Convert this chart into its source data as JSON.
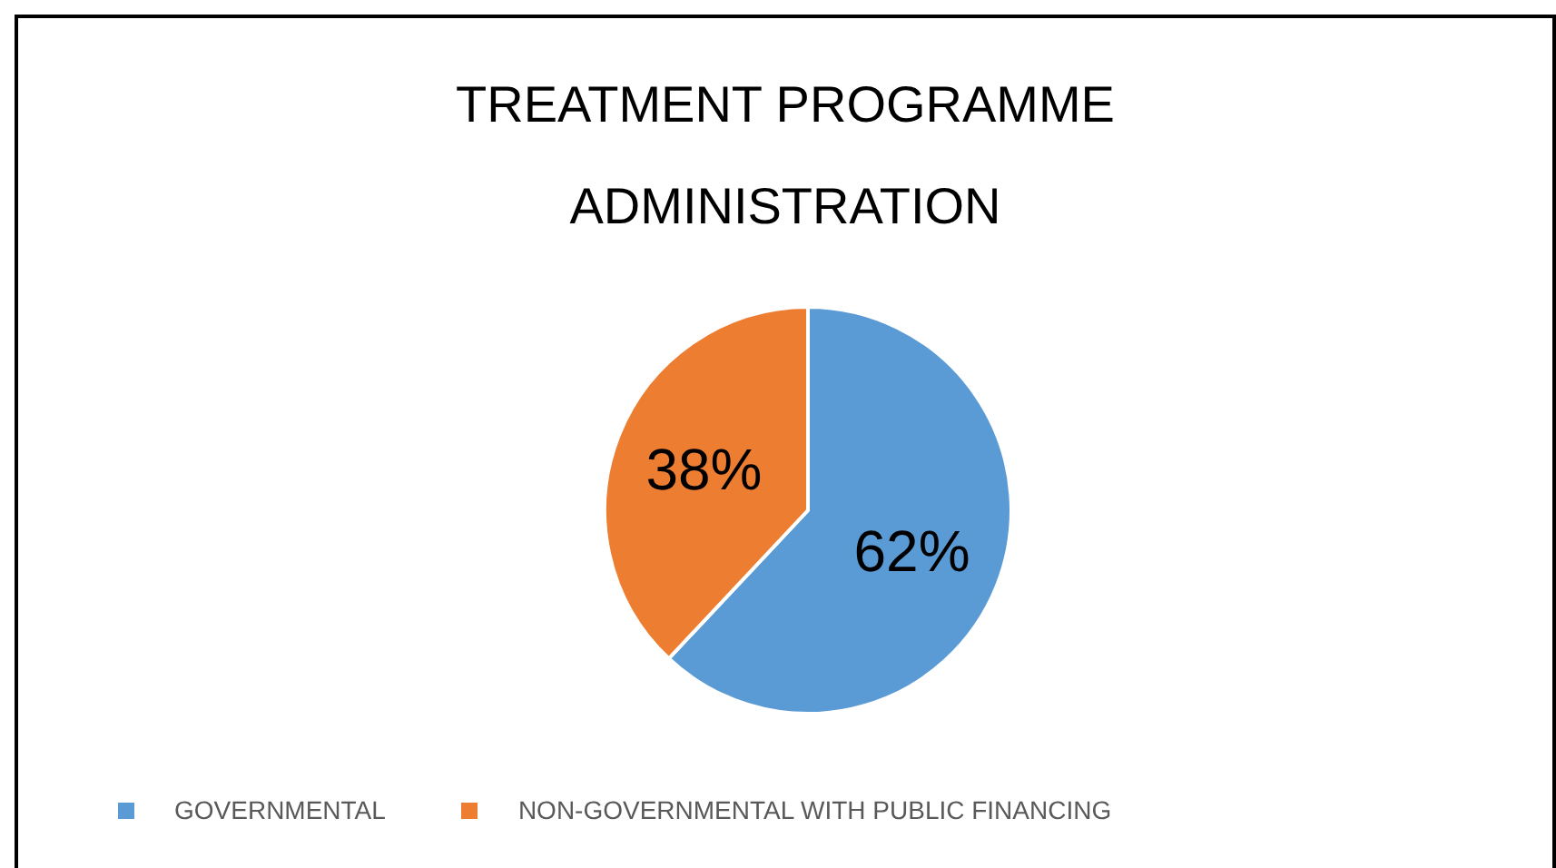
{
  "chart_data": {
    "type": "pie",
    "title": "TREATMENT PROGRAMME ADMINISTRATION",
    "categories": [
      "GOVERNMENTAL",
      "NON-GOVERNMENTAL WITH PUBLIC FINANCING"
    ],
    "values": [
      62,
      38
    ],
    "colors": [
      "#5b9bd5",
      "#ed7d31"
    ],
    "value_labels": [
      "62%",
      "38%"
    ],
    "legend": "bottom"
  }
}
